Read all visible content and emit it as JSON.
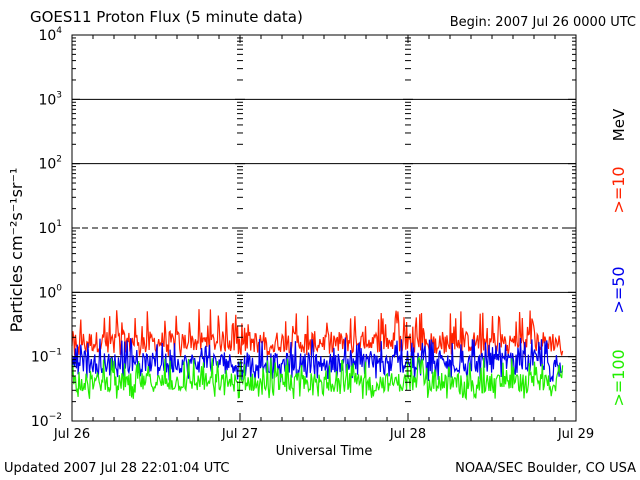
{
  "header": {
    "title": "GOES11 Proton Flux (5 minute data)",
    "begin": "Begin: 2007 Jul 26 0000 UTC"
  },
  "footer": {
    "updated": "Updated 2007 Jul 28 22:01:04 UTC",
    "credit": "NOAA/SEC Boulder, CO USA"
  },
  "chart_data": {
    "type": "line",
    "title": "GOES11 Proton Flux (5 minute data)",
    "xlabel": "Universal Time",
    "ylabel": "Particles cm⁻²s⁻¹sr⁻¹",
    "yscale": "log",
    "ylim": [
      0.01,
      10000
    ],
    "ytick_exponents": [
      -2,
      -1,
      0,
      1,
      2,
      3,
      4
    ],
    "xlim": [
      0,
      3
    ],
    "xticks": [
      "Jul 26",
      "Jul 27",
      "Jul 28",
      "Jul 29"
    ],
    "data_end_day": 2.92,
    "reference_lines": [
      {
        "value": 1,
        "style": "solid"
      },
      {
        "value": 10,
        "style": "dashed"
      },
      {
        "value": 100,
        "style": "solid"
      },
      {
        "value": 1000,
        "style": "solid"
      },
      {
        "value": 0.1,
        "style": "solid"
      }
    ],
    "unit_label": "MeV",
    "series": [
      {
        "name": ">=10",
        "color": "#ff2200",
        "typical": 0.17,
        "min": 0.1,
        "max": 0.55
      },
      {
        "name": ">=50",
        "color": "#0000ee",
        "typical": 0.08,
        "min": 0.04,
        "max": 0.2
      },
      {
        "name": ">=100",
        "color": "#22ee00",
        "typical": 0.04,
        "min": 0.022,
        "max": 0.1
      }
    ]
  }
}
